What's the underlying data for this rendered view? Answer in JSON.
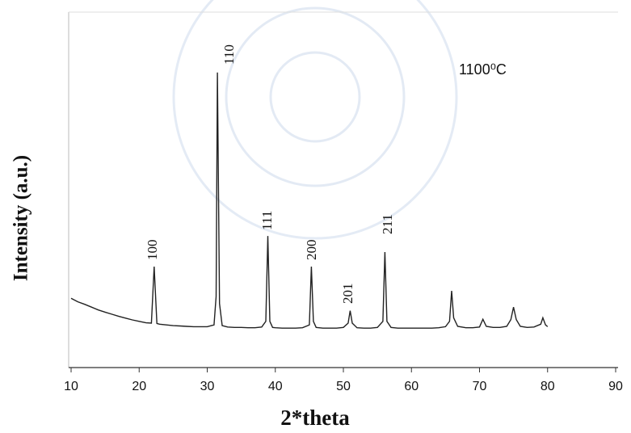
{
  "chart_data": {
    "type": "line",
    "xlabel": "2*theta",
    "ylabel": "Intensity (a.u.)",
    "annotations": [
      "100",
      "110",
      "111",
      "200",
      "201",
      "211"
    ],
    "legend_text": "1100⁰C",
    "xlim": [
      10,
      90
    ],
    "xticks": [
      10,
      20,
      30,
      40,
      50,
      60,
      70,
      80,
      90
    ],
    "ylim": [
      0,
      100
    ],
    "color": "#222222",
    "x": [
      10,
      11,
      12,
      13,
      14,
      15,
      16,
      17,
      18,
      19,
      20,
      21,
      21.8,
      22.2,
      22.6,
      23,
      24,
      25,
      26,
      27,
      28,
      29,
      30,
      31,
      31.3,
      31.5,
      31.8,
      32.2,
      33,
      34,
      35,
      36,
      37,
      38,
      38.6,
      38.9,
      39.2,
      39.6,
      40,
      41,
      42,
      43,
      44,
      45,
      45.3,
      45.6,
      46,
      47,
      48,
      49,
      50,
      50.7,
      51,
      51.3,
      52,
      53,
      54,
      55,
      55.8,
      56.1,
      56.4,
      57,
      58,
      59,
      60,
      61,
      62,
      63,
      64,
      65,
      65.6,
      65.9,
      66.2,
      66.8,
      68,
      69,
      70,
      70.5,
      71,
      72,
      73,
      74,
      74.6,
      75,
      75.4,
      76,
      77,
      78,
      79,
      79.3,
      79.7,
      80
    ],
    "values": [
      19.5,
      18.5,
      17.8,
      17,
      16.2,
      15.6,
      15,
      14.4,
      13.9,
      13.4,
      13,
      12.6,
      12.5,
      28.4,
      12.4,
      12.2,
      12,
      11.8,
      11.7,
      11.6,
      11.5,
      11.5,
      11.5,
      12,
      20,
      83,
      18,
      11.8,
      11.4,
      11.3,
      11.3,
      11.2,
      11.2,
      11.4,
      13,
      37,
      13,
      11.3,
      11.2,
      11.1,
      11.1,
      11.1,
      11.2,
      12,
      28.4,
      13,
      11.3,
      11.1,
      11.1,
      11.1,
      11.3,
      12.5,
      16,
      12.5,
      11.2,
      11.1,
      11.1,
      11.3,
      13,
      32.5,
      13,
      11.3,
      11.1,
      11.1,
      11.1,
      11.1,
      11.1,
      11.1,
      11.2,
      11.5,
      13,
      21.6,
      14,
      11.6,
      11.2,
      11.2,
      11.4,
      13.6,
      11.6,
      11.3,
      11.3,
      11.6,
      13.5,
      17,
      13.5,
      11.6,
      11.3,
      11.4,
      12.2,
      14,
      12,
      11.5
    ]
  }
}
